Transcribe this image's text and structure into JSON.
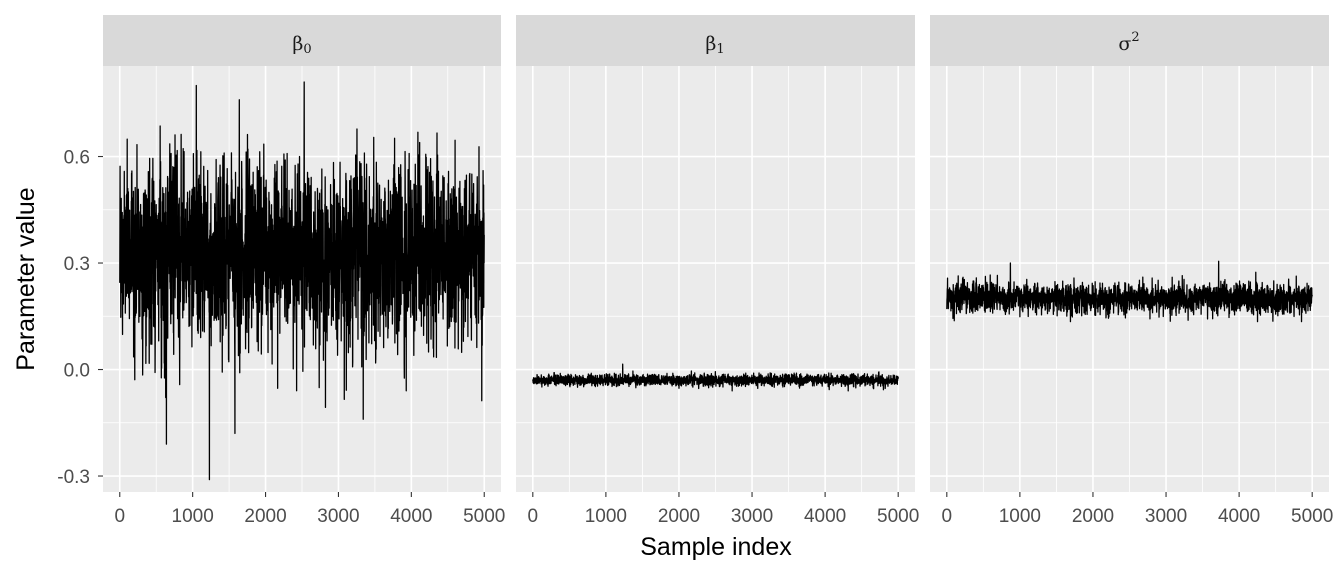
{
  "chart_data": {
    "type": "line",
    "xlabel": "Sample index",
    "ylabel": "Parameter value",
    "xlim": [
      -230,
      5230
    ],
    "ylim": [
      -0.345,
      0.855
    ],
    "x_ticks": [
      0,
      1000,
      2000,
      3000,
      4000,
      5000
    ],
    "y_ticks": [
      -0.3,
      0.0,
      0.3,
      0.6
    ],
    "y_tick_labels": [
      "-0.3",
      "0.0",
      "0.3",
      "0.6"
    ],
    "grid": true,
    "n_samples": 5000,
    "line_color": "#000000",
    "panel_background": "#ebebeb",
    "strip_background": "#d9d9d9",
    "panels": [
      {
        "strip_base": "β",
        "strip_sub": "0",
        "strip_sup": "",
        "series": {
          "mean": 0.33,
          "sd": 0.13,
          "min": -0.31,
          "max": 0.81,
          "spikes": [
            {
              "x": 640,
              "y": -0.21
            },
            {
              "x": 1050,
              "y": 0.8
            },
            {
              "x": 1230,
              "y": -0.31
            },
            {
              "x": 1580,
              "y": -0.18
            },
            {
              "x": 2530,
              "y": 0.81
            },
            {
              "x": 3340,
              "y": -0.14
            },
            {
              "x": 1640,
              "y": 0.76
            }
          ]
        }
      },
      {
        "strip_base": "β",
        "strip_sub": "1",
        "strip_sup": "",
        "series": {
          "mean": -0.03,
          "sd": 0.008,
          "min": -0.06,
          "max": 0.015,
          "spikes": [
            {
              "x": 1230,
              "y": 0.015
            }
          ]
        }
      },
      {
        "strip_base": "σ",
        "strip_sub": "",
        "strip_sup": "2",
        "series": {
          "mean": 0.2,
          "sd": 0.022,
          "min": 0.135,
          "max": 0.305,
          "spikes": [
            {
              "x": 870,
              "y": 0.3
            },
            {
              "x": 3720,
              "y": 0.305
            }
          ]
        }
      }
    ]
  }
}
